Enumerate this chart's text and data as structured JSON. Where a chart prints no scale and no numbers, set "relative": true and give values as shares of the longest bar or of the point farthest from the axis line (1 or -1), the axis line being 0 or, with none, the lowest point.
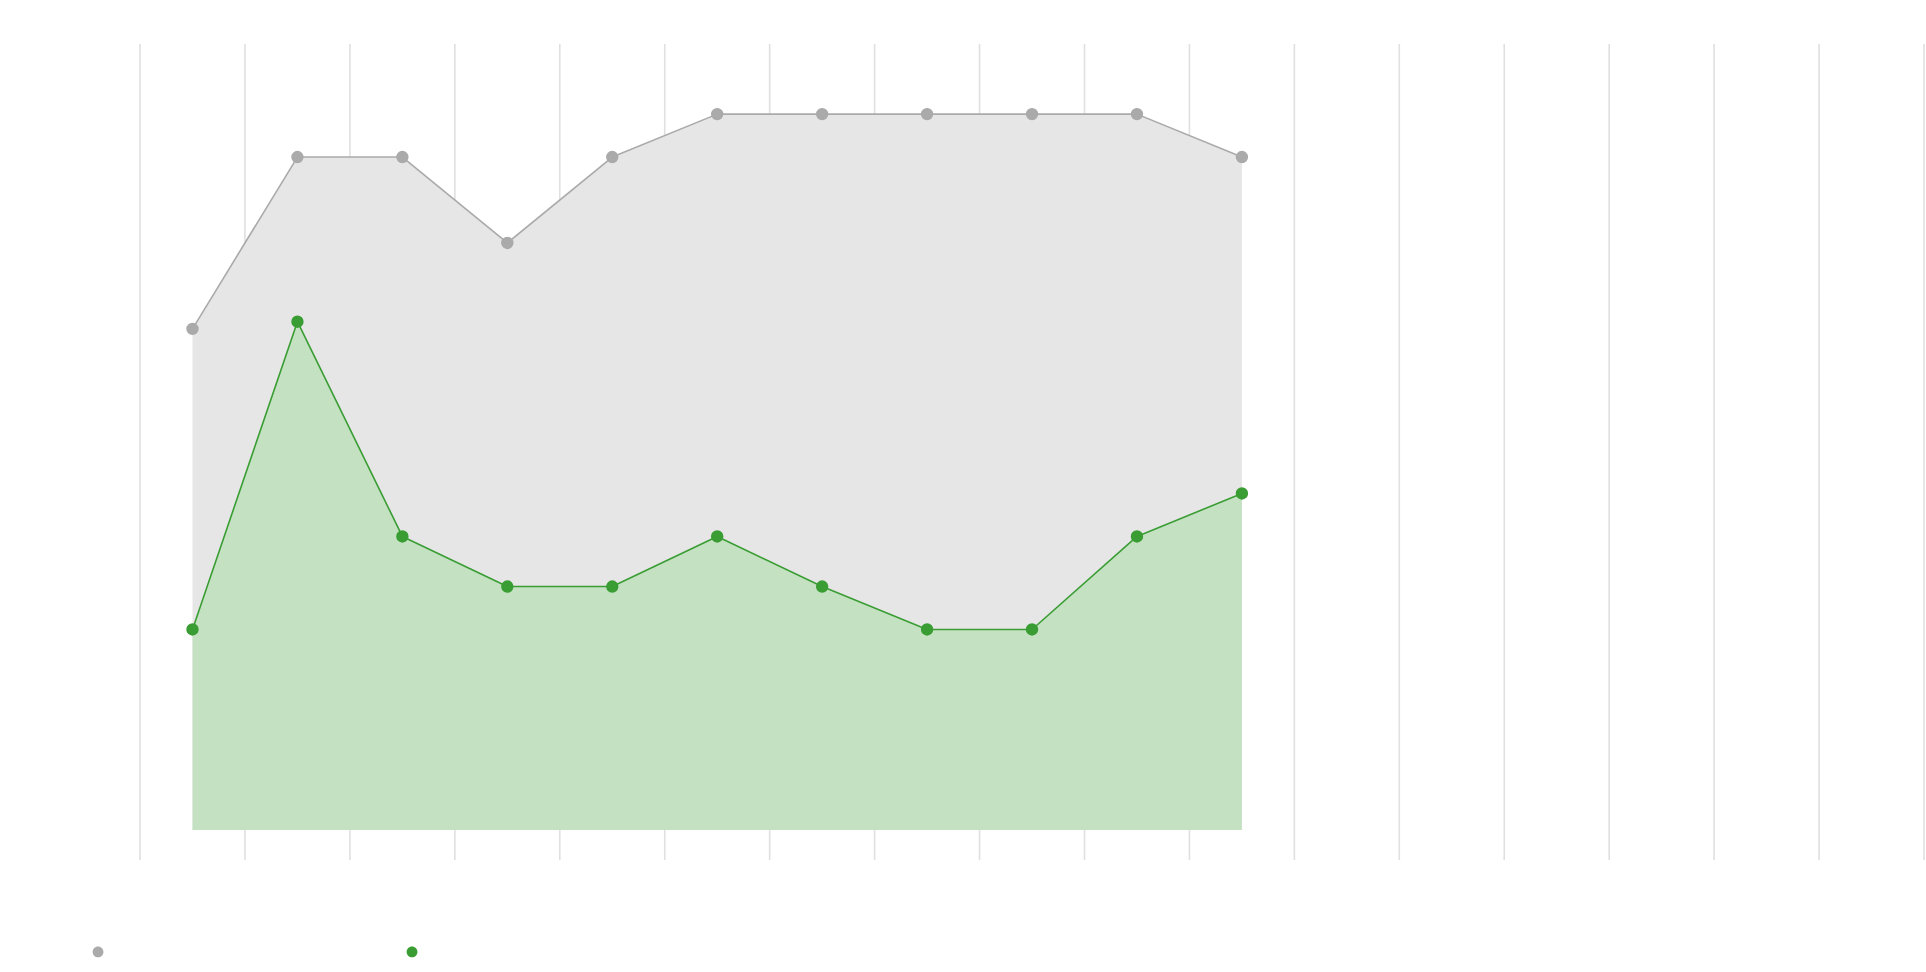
{
  "chart_data": {
    "type": "area",
    "relative": true,
    "grid": "x",
    "marker": "circle",
    "categories": [
      null,
      null,
      null,
      null,
      null,
      null,
      null,
      null,
      null,
      null,
      null,
      null,
      null,
      null,
      null,
      null,
      null
    ],
    "series": [
      {
        "color": "#aaaaaa",
        "values": [
          0.7,
          0.94,
          0.94,
          0.82,
          0.94,
          1,
          1,
          1,
          1,
          1,
          0.94,
          null,
          null,
          null,
          null,
          null,
          null
        ]
      },
      {
        "color": "#3a9d34",
        "values": [
          0.28,
          0.71,
          0.41,
          0.34,
          0.34,
          0.41,
          0.34,
          0.28,
          0.28,
          0.41,
          0.47,
          null,
          null,
          null,
          null,
          null,
          null
        ]
      }
    ]
  }
}
